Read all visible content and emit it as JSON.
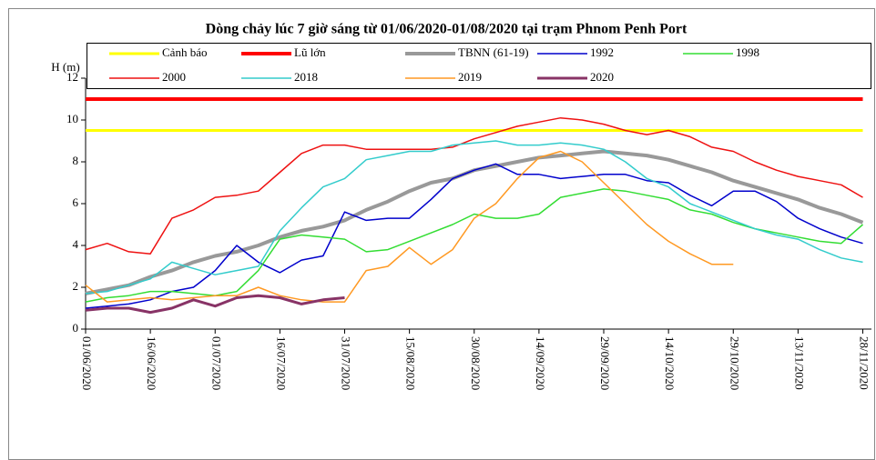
{
  "chart_data": {
    "type": "line",
    "title": "Dòng chảy lúc 7 giờ sáng từ 01/06/2020-01/08/2020 tại trạm Phnom Penh Port",
    "y_label": "H (m)",
    "legend": "top",
    "grid": false,
    "x": [
      "01/06/2020",
      "06/06/2020",
      "11/06/2020",
      "16/06/2020",
      "21/06/2020",
      "26/06/2020",
      "01/07/2020",
      "06/07/2020",
      "11/07/2020",
      "16/07/2020",
      "21/07/2020",
      "26/07/2020",
      "31/07/2020",
      "05/08/2020",
      "10/08/2020",
      "15/08/2020",
      "20/08/2020",
      "25/08/2020",
      "30/08/2020",
      "04/09/2020",
      "09/09/2020",
      "14/09/2020",
      "19/09/2020",
      "24/09/2020",
      "29/09/2020",
      "04/10/2020",
      "09/10/2020",
      "14/10/2020",
      "19/10/2020",
      "24/10/2020",
      "29/10/2020",
      "03/11/2020",
      "08/11/2020",
      "13/11/2020",
      "18/11/2020",
      "23/11/2020",
      "28/11/2020"
    ],
    "xlim": [
      "01/06/2020",
      "30/11/2020"
    ],
    "xticks": [
      "01/06/2020",
      "16/06/2020",
      "01/07/2020",
      "16/07/2020",
      "31/07/2020",
      "15/08/2020",
      "30/08/2020",
      "14/09/2020",
      "29/09/2020",
      "14/10/2020",
      "29/10/2020",
      "13/11/2020",
      "28/11/2020"
    ],
    "ylim": [
      0,
      12
    ],
    "yticks": [
      0,
      2,
      4,
      6,
      8,
      10,
      12
    ],
    "series": [
      {
        "name": "Cảnh báo",
        "color": "#ffff00",
        "width": 3,
        "values": [
          9.5,
          9.5,
          9.5,
          9.5,
          9.5,
          9.5,
          9.5,
          9.5,
          9.5,
          9.5,
          9.5,
          9.5,
          9.5,
          9.5,
          9.5,
          9.5,
          9.5,
          9.5,
          9.5,
          9.5,
          9.5,
          9.5,
          9.5,
          9.5,
          9.5,
          9.5,
          9.5,
          9.5,
          9.5,
          9.5,
          9.5,
          9.5,
          9.5,
          9.5,
          9.5,
          9.5,
          9.5
        ]
      },
      {
        "name": "Lũ lớn",
        "color": "#ff0000",
        "width": 4,
        "values": [
          11,
          11,
          11,
          11,
          11,
          11,
          11,
          11,
          11,
          11,
          11,
          11,
          11,
          11,
          11,
          11,
          11,
          11,
          11,
          11,
          11,
          11,
          11,
          11,
          11,
          11,
          11,
          11,
          11,
          11,
          11,
          11,
          11,
          11,
          11,
          11,
          11
        ]
      },
      {
        "name": "TBNN (61-19)",
        "color": "#999999",
        "width": 4,
        "values": [
          1.7,
          1.9,
          2.1,
          2.5,
          2.8,
          3.2,
          3.5,
          3.7,
          4.0,
          4.4,
          4.7,
          4.9,
          5.2,
          5.7,
          6.1,
          6.6,
          7.0,
          7.2,
          7.6,
          7.8,
          8.0,
          8.2,
          8.3,
          8.4,
          8.5,
          8.4,
          8.3,
          8.1,
          7.8,
          7.5,
          7.1,
          6.8,
          6.5,
          6.2,
          5.8,
          5.5,
          5.1
        ]
      },
      {
        "name": "1992",
        "color": "#0000cc",
        "width": 1.5,
        "values": [
          1.0,
          1.1,
          1.2,
          1.4,
          1.8,
          2.0,
          2.8,
          4.0,
          3.2,
          2.7,
          3.3,
          3.5,
          5.6,
          5.2,
          5.3,
          5.3,
          6.2,
          7.2,
          7.6,
          7.9,
          7.4,
          7.4,
          7.2,
          7.3,
          7.4,
          7.4,
          7.1,
          7.0,
          6.4,
          5.9,
          6.6,
          6.6,
          6.1,
          5.3,
          4.8,
          4.4,
          4.1
        ]
      },
      {
        "name": "1998",
        "color": "#33dd33",
        "width": 1.5,
        "values": [
          1.3,
          1.5,
          1.6,
          1.8,
          1.8,
          1.7,
          1.6,
          1.8,
          2.8,
          4.3,
          4.5,
          4.4,
          4.3,
          3.7,
          3.8,
          4.2,
          4.6,
          5.0,
          5.5,
          5.3,
          5.3,
          5.5,
          6.3,
          6.5,
          6.7,
          6.6,
          6.4,
          6.2,
          5.7,
          5.5,
          5.1,
          4.8,
          4.6,
          4.4,
          4.2,
          4.1,
          5.0
        ]
      },
      {
        "name": "2000",
        "color": "#ee1111",
        "width": 1.5,
        "values": [
          3.8,
          4.1,
          3.7,
          3.6,
          5.3,
          5.7,
          6.3,
          6.4,
          6.6,
          7.5,
          8.4,
          8.8,
          8.8,
          8.6,
          8.6,
          8.6,
          8.6,
          8.7,
          9.1,
          9.4,
          9.7,
          9.9,
          10.1,
          10.0,
          9.8,
          9.5,
          9.3,
          9.5,
          9.2,
          8.7,
          8.5,
          8.0,
          7.6,
          7.3,
          7.1,
          6.9,
          6.3
        ]
      },
      {
        "name": "2018",
        "color": "#33cccc",
        "width": 1.5,
        "values": [
          1.7,
          1.8,
          2.1,
          2.4,
          3.2,
          2.9,
          2.6,
          2.8,
          3.0,
          4.7,
          5.8,
          6.8,
          7.2,
          8.1,
          8.3,
          8.5,
          8.5,
          8.8,
          8.9,
          9.0,
          8.8,
          8.8,
          8.9,
          8.8,
          8.6,
          8.0,
          7.2,
          6.8,
          6.0,
          5.6,
          5.2,
          4.8,
          4.5,
          4.3,
          3.8,
          3.4,
          3.2
        ]
      },
      {
        "name": "2019",
        "color": "#ff9922",
        "width": 1.5,
        "values": [
          2.1,
          1.3,
          1.4,
          1.5,
          1.4,
          1.5,
          1.6,
          1.6,
          2.0,
          1.6,
          1.4,
          1.3,
          1.3,
          2.8,
          3.0,
          3.9,
          3.1,
          3.8,
          5.3,
          6.0,
          7.2,
          8.2,
          8.5,
          8.0,
          7.0,
          6.0,
          5.0,
          4.2,
          3.6,
          3.1,
          3.1,
          null,
          null,
          null,
          null,
          null,
          null
        ]
      },
      {
        "name": "2020",
        "color": "#883366",
        "width": 3,
        "values": [
          0.9,
          1.0,
          1.0,
          0.8,
          1.0,
          1.4,
          1.1,
          1.5,
          1.6,
          1.5,
          1.2,
          1.4,
          1.5,
          null,
          null,
          null,
          null,
          null,
          null,
          null,
          null,
          null,
          null,
          null,
          null,
          null,
          null,
          null,
          null,
          null,
          null,
          null,
          null,
          null,
          null,
          null,
          null
        ]
      }
    ]
  }
}
